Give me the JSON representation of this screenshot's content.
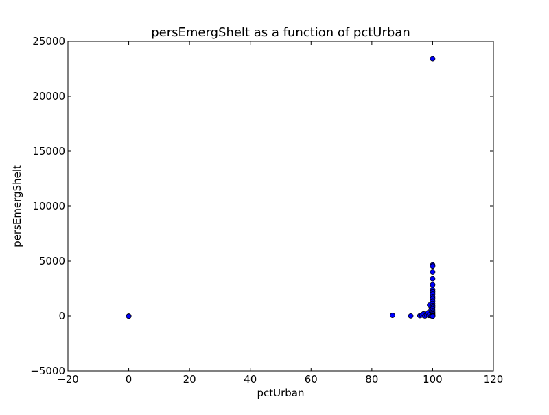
{
  "chart_data": {
    "type": "scatter",
    "title": "persEmergShelt as a function of pctUrban",
    "xlabel": "pctUrban",
    "ylabel": "persEmergShelt",
    "xlim": [
      -20,
      120
    ],
    "ylim": [
      -5000,
      25000
    ],
    "xticks": [
      -20,
      0,
      20,
      40,
      60,
      80,
      100,
      120
    ],
    "yticks": [
      -5000,
      0,
      5000,
      10000,
      15000,
      20000,
      25000
    ],
    "xtick_labels": [
      "−20",
      "0",
      "20",
      "40",
      "60",
      "80",
      "100",
      "120"
    ],
    "ytick_labels": [
      "−5000",
      "0",
      "5000",
      "10000",
      "15000",
      "20000",
      "25000"
    ],
    "grid": false,
    "marker_color": "#0000ff",
    "marker_edge": "#000000",
    "points": [
      {
        "x": 0,
        "y": 0
      },
      {
        "x": 0,
        "y": -20
      },
      {
        "x": 86.8,
        "y": 60
      },
      {
        "x": 92.8,
        "y": 10
      },
      {
        "x": 95.8,
        "y": 30
      },
      {
        "x": 96.5,
        "y": 80
      },
      {
        "x": 97,
        "y": 200
      },
      {
        "x": 97.5,
        "y": 0
      },
      {
        "x": 98,
        "y": 120
      },
      {
        "x": 98.5,
        "y": 300
      },
      {
        "x": 98.8,
        "y": 50
      },
      {
        "x": 99,
        "y": 1000
      },
      {
        "x": 99.2,
        "y": 150
      },
      {
        "x": 99.5,
        "y": 600
      },
      {
        "x": 99.6,
        "y": 20
      },
      {
        "x": 99.7,
        "y": 400
      },
      {
        "x": 99.8,
        "y": 900
      },
      {
        "x": 99.9,
        "y": 0
      },
      {
        "x": 99.9,
        "y": 250
      },
      {
        "x": 100,
        "y": 23400
      },
      {
        "x": 100,
        "y": 4650
      },
      {
        "x": 100,
        "y": 4550
      },
      {
        "x": 100,
        "y": 4000
      },
      {
        "x": 100,
        "y": 3400
      },
      {
        "x": 100,
        "y": 2850
      },
      {
        "x": 100,
        "y": 2400
      },
      {
        "x": 100,
        "y": 2200
      },
      {
        "x": 100,
        "y": 2000
      },
      {
        "x": 100,
        "y": 1750
      },
      {
        "x": 100,
        "y": 1600
      },
      {
        "x": 100,
        "y": 1350
      },
      {
        "x": 100,
        "y": 1150
      },
      {
        "x": 100,
        "y": 950
      },
      {
        "x": 100,
        "y": 800
      },
      {
        "x": 100,
        "y": 650
      },
      {
        "x": 100,
        "y": 500
      },
      {
        "x": 100,
        "y": 350
      },
      {
        "x": 100,
        "y": 200
      },
      {
        "x": 100,
        "y": 100
      },
      {
        "x": 100,
        "y": 30
      },
      {
        "x": 100,
        "y": 0
      },
      {
        "x": 100,
        "y": -20
      }
    ]
  }
}
